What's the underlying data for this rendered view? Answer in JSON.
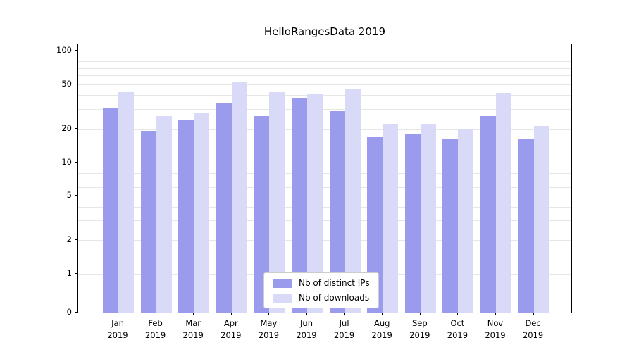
{
  "chart_data": {
    "type": "bar",
    "title": "HelloRangesData 2019",
    "x_year": "2019",
    "categories": [
      "Jan",
      "Feb",
      "Mar",
      "Apr",
      "May",
      "Jun",
      "Jul",
      "Aug",
      "Sep",
      "Oct",
      "Nov",
      "Dec"
    ],
    "series": [
      {
        "name": "Nb of distinct IPs",
        "color": "#9b9bee",
        "values": [
          31,
          19,
          24,
          34,
          26,
          38,
          29,
          17,
          18,
          16,
          26,
          16
        ]
      },
      {
        "name": "Nb of downloads",
        "color": "#d9d9f8",
        "values": [
          43,
          26,
          28,
          52,
          43,
          41,
          46,
          22,
          22,
          20,
          42,
          21
        ]
      }
    ],
    "y_scale": "symlog",
    "y_ticks": [
      0,
      1,
      2,
      5,
      10,
      20,
      50,
      100
    ],
    "ylim": [
      0,
      100
    ],
    "grid": true,
    "gridline_color": "#e6e6e6",
    "legend_position": "lower center"
  }
}
